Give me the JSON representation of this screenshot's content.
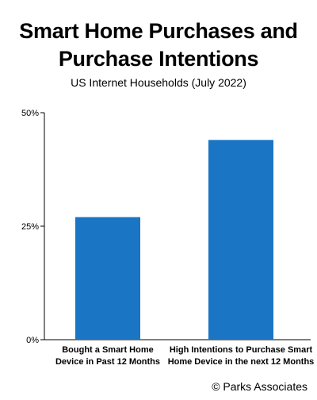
{
  "chart_data": {
    "type": "bar",
    "title": "Smart Home Purchases and Purchase Intentions",
    "subtitle": "US Internet Households (July 2022)",
    "categories": [
      [
        "Bought a Smart Home",
        "Device in Past 12 Months"
      ],
      [
        "High Intentions to Purchase Smart",
        "Home Device in the next 12 Months"
      ]
    ],
    "values": [
      27,
      44
    ],
    "ylim": [
      0,
      50
    ],
    "y_ticks": [
      0,
      25,
      50
    ],
    "y_tick_labels": [
      "0%",
      "25%",
      "50%"
    ],
    "bar_color": "#1a75c4",
    "axis_color": "#000000",
    "grid": false,
    "legend": "none"
  },
  "footer": {
    "copyright": "© Parks Associates"
  }
}
